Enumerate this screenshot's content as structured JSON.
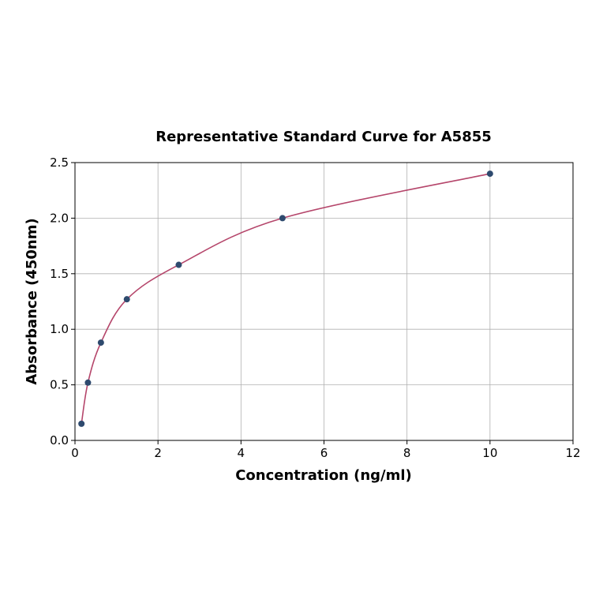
{
  "chart_data": {
    "type": "scatter",
    "title": "Representative Standard Curve for A5855",
    "xlabel": "Concentration (ng/ml)",
    "ylabel": "Absorbance (450nm)",
    "xlim": [
      0,
      12
    ],
    "ylim": [
      0,
      2.5
    ],
    "xticks": [
      0,
      2,
      4,
      6,
      8,
      10,
      12
    ],
    "yticks": [
      0.0,
      0.5,
      1.0,
      1.5,
      2.0,
      2.5
    ],
    "grid": true,
    "x": [
      0.156,
      0.3125,
      0.625,
      1.25,
      2.5,
      5,
      10
    ],
    "y": [
      0.15,
      0.52,
      0.88,
      1.27,
      1.58,
      2.0,
      2.4
    ],
    "fit_line": true,
    "colors": {
      "points": "#2e4a6e",
      "curve": "#b5466b",
      "grid": "#b0b0b0"
    }
  }
}
